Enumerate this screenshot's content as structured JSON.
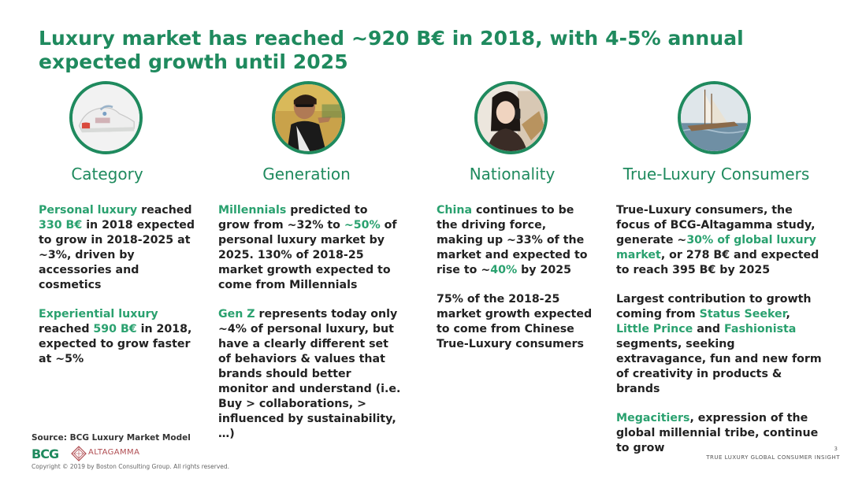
{
  "title": "Luxury market has reached ~920 B€ in 2018, with 4-5% annual expected growth until 2025",
  "columns": [
    {
      "heading": "Category",
      "image_icon": "sneaker-photo-icon",
      "paragraphs": [
        [
          {
            "t": "Personal luxury",
            "g": true
          },
          {
            "t": " reached "
          },
          {
            "t": "330 B€",
            "g": true
          },
          {
            "t": " in 2018 expected to grow in 2018-2025 at ~3%, driven by accessories and cosmetics"
          }
        ],
        [
          {
            "t": "Experiential luxury",
            "g": true
          },
          {
            "t": " reached "
          },
          {
            "t": "590 B€",
            "g": true
          },
          {
            "t": " in 2018, expected to grow faster at ~5%"
          }
        ]
      ]
    },
    {
      "heading": "Generation",
      "image_icon": "young-woman-sunglasses-photo-icon",
      "paragraphs": [
        [
          {
            "t": "Millennials",
            "g": true
          },
          {
            "t": " predicted to grow from ~32% to "
          },
          {
            "t": "~50%",
            "g": true
          },
          {
            "t": " of personal luxury market by 2025. 130% of 2018-25 market growth expected to come from Millennials"
          }
        ],
        [
          {
            "t": "Gen Z",
            "g": true
          },
          {
            "t": " represents today only ~4% of personal luxury, but have a clearly different set of behaviors & values that brands should better monitor and understand (i.e. Buy > collaborations, > influenced by sustainability, …)"
          }
        ]
      ]
    },
    {
      "heading": "Nationality",
      "image_icon": "chinese-woman-phone-photo-icon",
      "paragraphs": [
        [
          {
            "t": "China",
            "g": true
          },
          {
            "t": " continues to be the driving force, making up ~33% of the market and expected to rise to ~"
          },
          {
            "t": "40%",
            "g": true
          },
          {
            "t": " by 2025"
          }
        ],
        [
          {
            "t": "75% of the 2018-25 market growth expected to come from Chinese True-Luxury consumers"
          }
        ]
      ]
    },
    {
      "heading": "True-Luxury Consumers",
      "image_icon": "sailing-yacht-photo-icon",
      "paragraphs": [
        [
          {
            "t": "True-Luxury consumers, the focus of BCG-Altagamma study, generate ~"
          },
          {
            "t": "30% of global luxury market",
            "g": true
          },
          {
            "t": ", or 278 B€ and expected to reach 395 B€ by 2025"
          }
        ],
        [
          {
            "t": "Largest contribution to growth coming from "
          },
          {
            "t": "Status Seeker",
            "g": true
          },
          {
            "t": ", "
          },
          {
            "t": "Little Prince",
            "g": true
          },
          {
            "t": " and "
          },
          {
            "t": "Fashionista",
            "g": true
          },
          {
            "t": " segments, seeking extravagance, fun and new form of creativity in products & brands"
          }
        ],
        [
          {
            "t": "Megacitiers",
            "g": true
          },
          {
            "t": ", expression of the global millennial tribe, continue to grow"
          }
        ]
      ]
    }
  ],
  "source": "Source: BCG Luxury Market Model",
  "logos": {
    "bcg": "BCG",
    "altagamma": "ALTAGAMMA"
  },
  "copyright": "Copyright © 2019 by Boston Consulting Group. All rights reserved.",
  "footer": "TRUE LUXURY GLOBAL CONSUMER INSIGHT",
  "page_number": "3",
  "colors": {
    "accent": "#1f8a5e",
    "highlight": "#2aa16f"
  }
}
